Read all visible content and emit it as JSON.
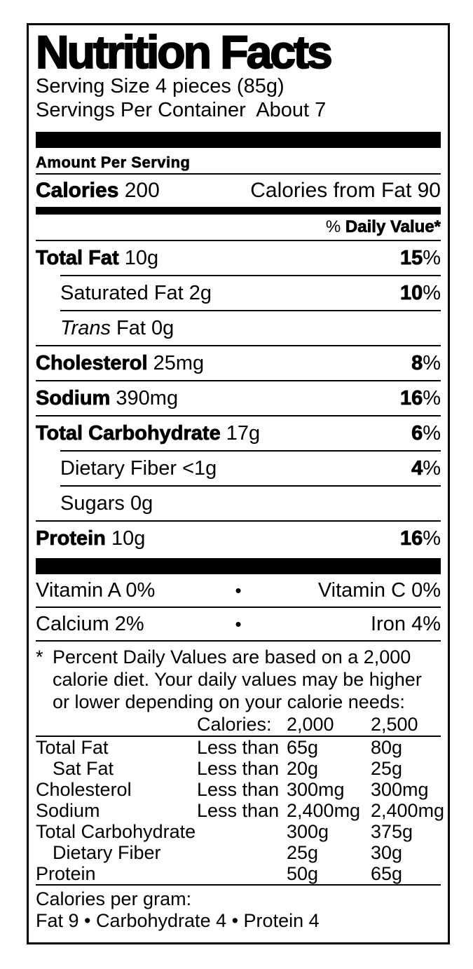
{
  "shared": {
    "percent_sign": "%",
    "bullet": "•"
  },
  "header": {
    "title": "Nutrition Facts",
    "serving_size": "Serving Size 4 pieces (85g)",
    "servings_per_container": "Servings Per Container  About 7",
    "amount_per_serving": "Amount Per Serving"
  },
  "calories": {
    "label": "Calories",
    "value": "200",
    "from_fat": "Calories from Fat 90"
  },
  "dv_header": {
    "prefix": "% ",
    "bold": "Daily Value*"
  },
  "nutrients": [
    {
      "name": "Total Fat",
      "amount": "10g",
      "dv": "15"
    },
    {
      "name": "Saturated Fat",
      "amount": "2g",
      "dv": "10"
    },
    {
      "name_italic": "Trans",
      "name": "Fat",
      "amount": "0g"
    },
    {
      "name": "Cholesterol",
      "amount": "25mg",
      "dv": "8"
    },
    {
      "name": "Sodium",
      "amount": "390mg",
      "dv": "16"
    },
    {
      "name": "Total Carbohydrate",
      "amount": "17g",
      "dv": "6"
    },
    {
      "name": "Dietary Fiber",
      "amount": "<1g",
      "dv": "4"
    },
    {
      "name": "Sugars",
      "amount": "0g"
    },
    {
      "name": "Protein",
      "amount": "10g",
      "dv": "16"
    }
  ],
  "vitamins": [
    {
      "left": "Vitamin A 0%",
      "right": "Vitamin C 0%"
    },
    {
      "left": "Calcium 2%",
      "right": "Iron 4%"
    }
  ],
  "footnote": {
    "star": "*",
    "line1": "Percent Daily Values are based on a 2,000",
    "line2": "calorie diet. Your daily values may be higher",
    "line3": "or lower depending on your calorie needs:"
  },
  "dv_table": {
    "header": {
      "col2": "Calories:",
      "col3": "2,000",
      "col4": "2,500"
    },
    "rows": [
      {
        "name": "Total Fat",
        "qual": "Less than",
        "v1": "65g",
        "v2": "80g"
      },
      {
        "name": "Sat Fat",
        "qual": "Less than",
        "v1": "20g",
        "v2": "25g"
      },
      {
        "name": "Cholesterol",
        "qual": "Less than",
        "v1": "300mg",
        "v2": "300mg"
      },
      {
        "name": "Sodium",
        "qual": "Less than",
        "v1": "2,400mg",
        "v2": "2,400mg"
      },
      {
        "name": "Total Carbohydrate",
        "qual": "",
        "v1": "300g",
        "v2": "375g"
      },
      {
        "name": "Dietary Fiber",
        "qual": "",
        "v1": "25g",
        "v2": "30g"
      },
      {
        "name": "Protein",
        "qual": "",
        "v1": "50g",
        "v2": "65g"
      }
    ]
  },
  "calories_per_gram": {
    "title": "Calories per gram:",
    "line": "Fat 9 • Carbohydrate 4 • Protein 4"
  },
  "colors": {
    "ink": "#000000",
    "paper": "#ffffff"
  }
}
